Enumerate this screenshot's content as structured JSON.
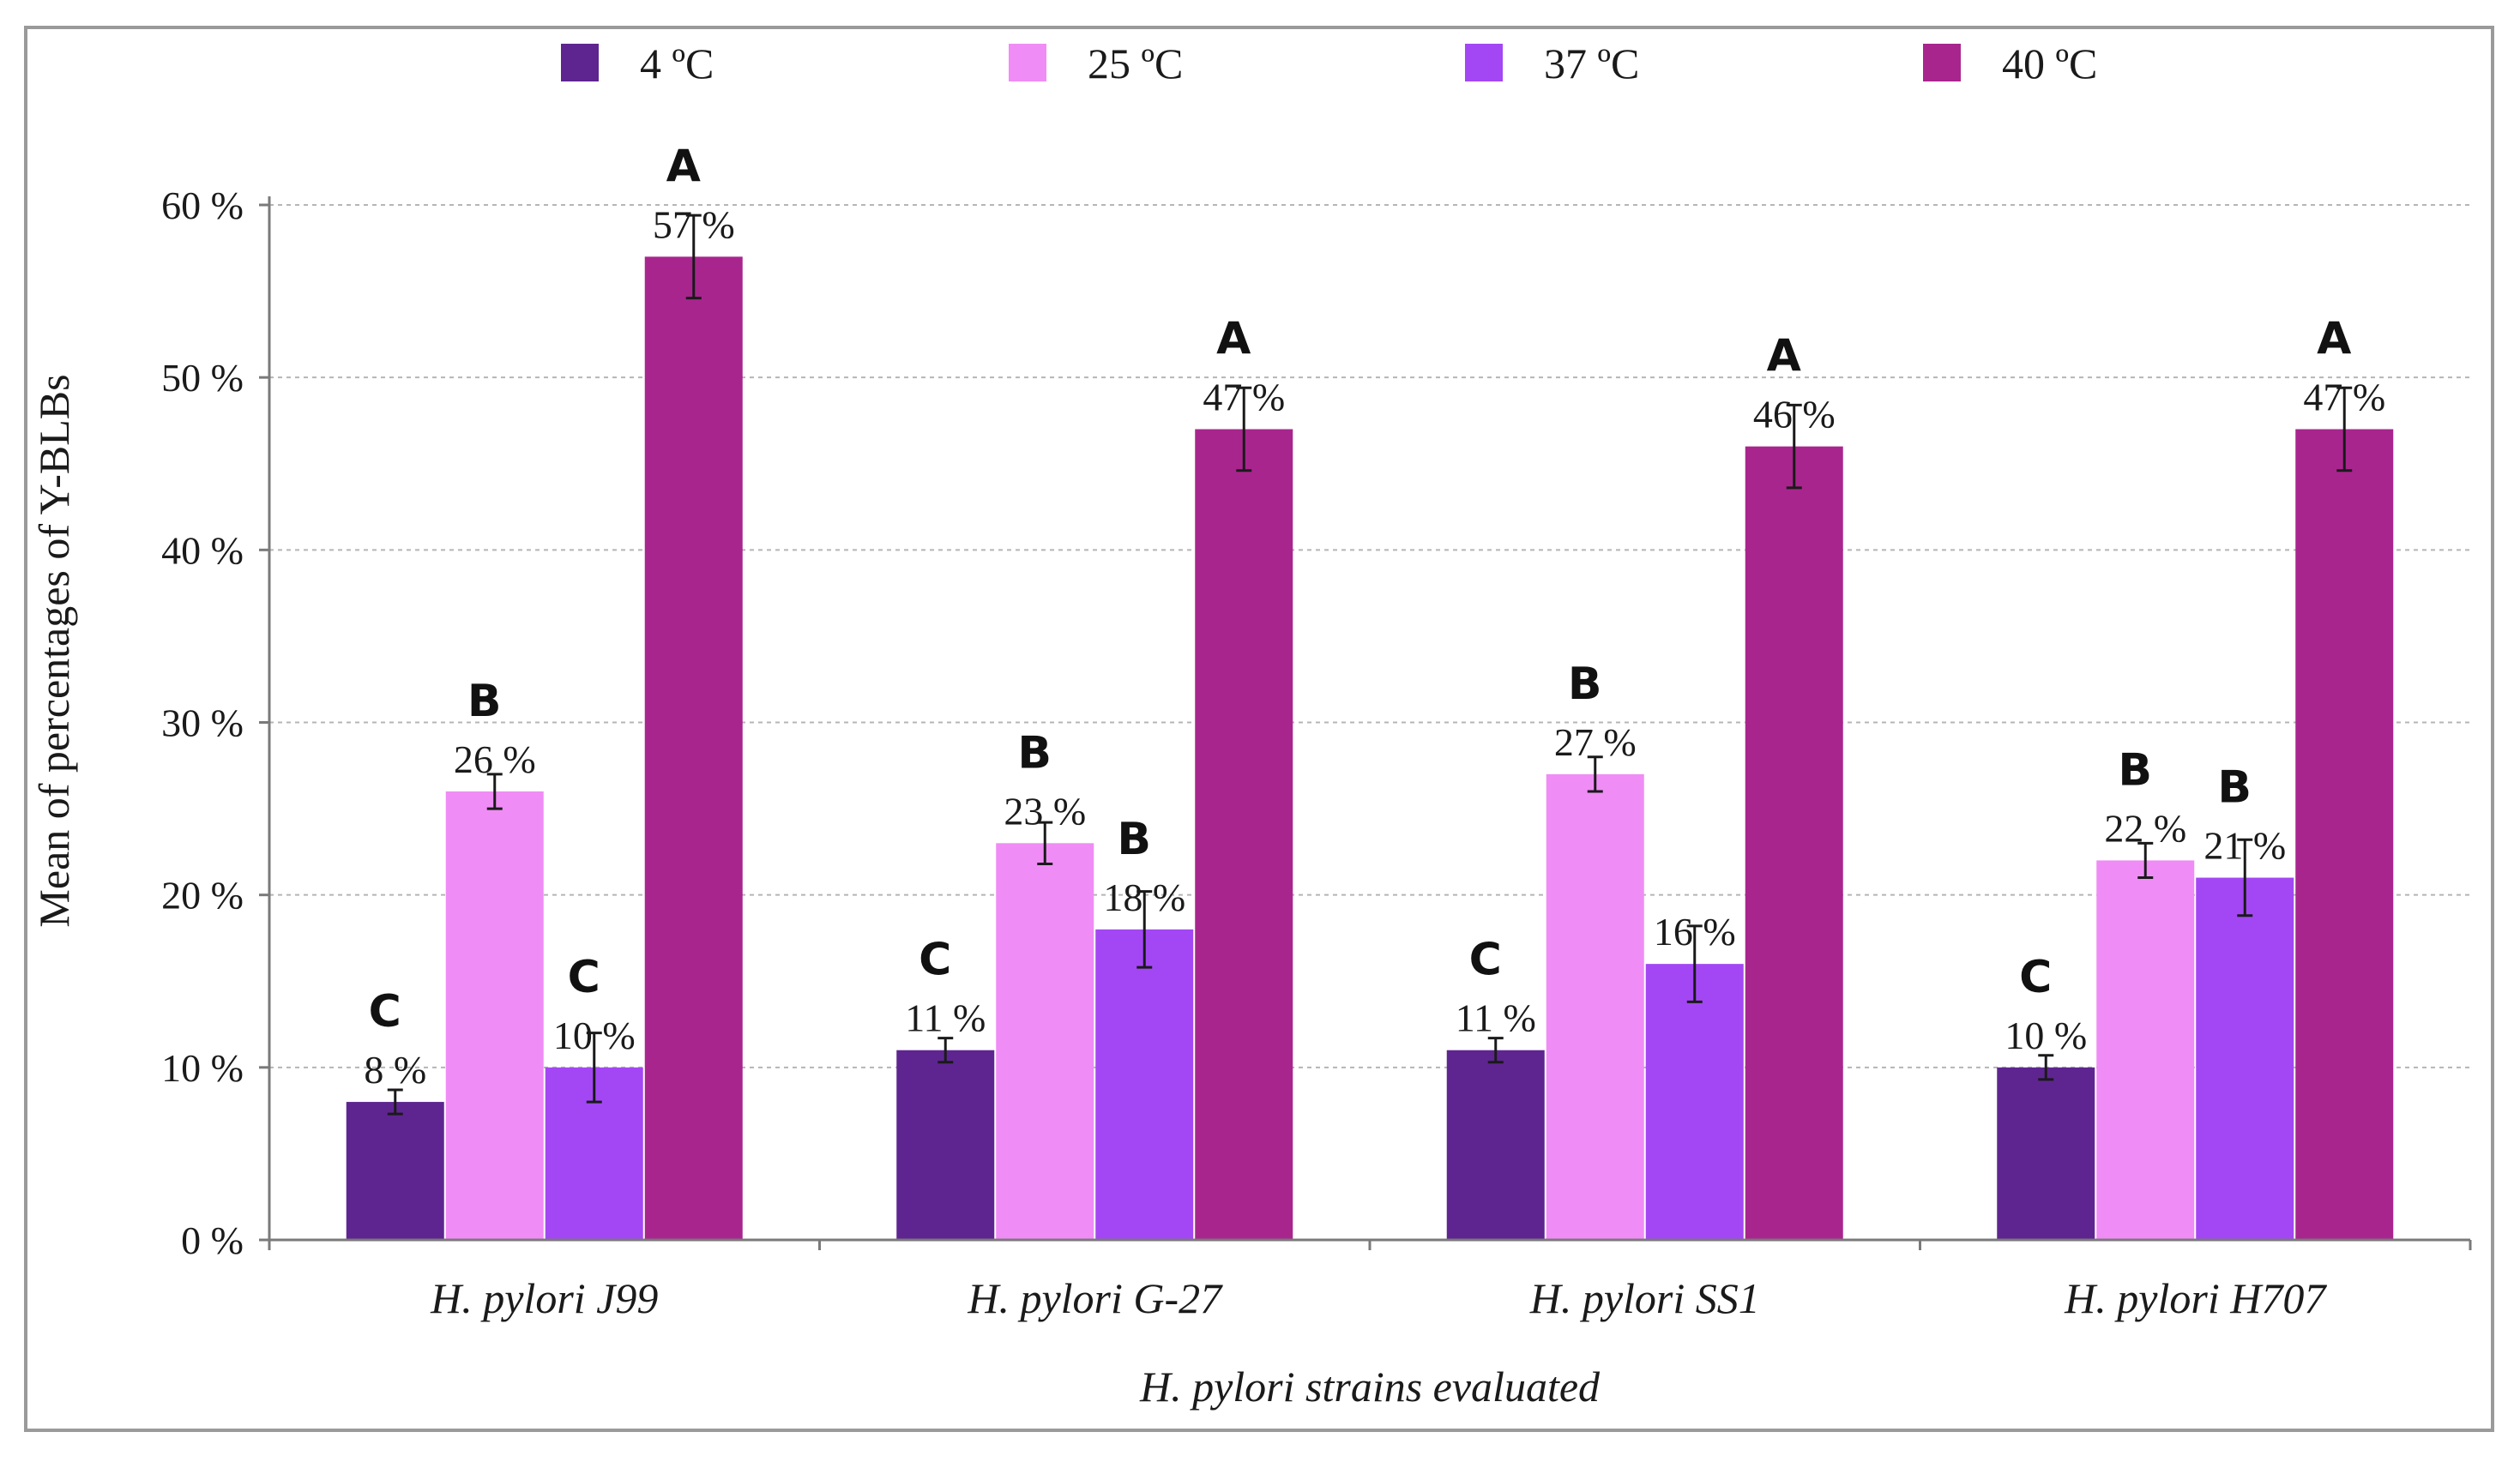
{
  "chart_data": {
    "type": "bar",
    "title": "",
    "xlabel": "H. pylori strains evaluated",
    "ylabel": "Mean of percentages of Y-BLBs",
    "ylim": [
      0,
      60
    ],
    "yticks": [
      0,
      10,
      20,
      30,
      40,
      50,
      60
    ],
    "ytick_labels": [
      "0 %",
      "10 %",
      "20 %",
      "30 %",
      "40 %",
      "50 %",
      "60 %"
    ],
    "grid": true,
    "legend_position": "top",
    "categories": [
      "H. pylori J99",
      "H. pylori G-27",
      "H. pylori SS1",
      "H. pylori H707"
    ],
    "series": [
      {
        "name": "4 ºC",
        "color": "#5e2590",
        "values": [
          8,
          11,
          11,
          10
        ],
        "value_labels": [
          "8 %",
          "11 %",
          "11 %",
          "10 %"
        ],
        "error": [
          0.7,
          0.7,
          0.7,
          0.7
        ],
        "significance": [
          "C",
          "C",
          "C",
          "C"
        ]
      },
      {
        "name": "25 ºC",
        "color": "#f08cf5",
        "values": [
          26,
          23,
          27,
          22
        ],
        "value_labels": [
          "26 %",
          "23 %",
          "27 %",
          "22 %"
        ],
        "error": [
          1.0,
          1.2,
          1.0,
          1.0
        ],
        "significance": [
          "B",
          "B",
          "B",
          "B"
        ]
      },
      {
        "name": "37 ºC",
        "color": "#a347f4",
        "values": [
          10,
          18,
          16,
          21
        ],
        "value_labels": [
          "10 %",
          "18 %",
          "16 %",
          "21 %"
        ],
        "error": [
          2.0,
          2.2,
          2.2,
          2.2
        ],
        "significance": [
          "C",
          "B",
          "",
          "B"
        ]
      },
      {
        "name": "40 ºC",
        "color": "#a9258e",
        "values": [
          57,
          47,
          46,
          47
        ],
        "value_labels": [
          "57 %",
          "47 %",
          "46 %",
          "47 %"
        ],
        "error": [
          2.4,
          2.4,
          2.4,
          2.4
        ],
        "significance": [
          "A",
          "A",
          "A",
          "A"
        ]
      }
    ]
  }
}
